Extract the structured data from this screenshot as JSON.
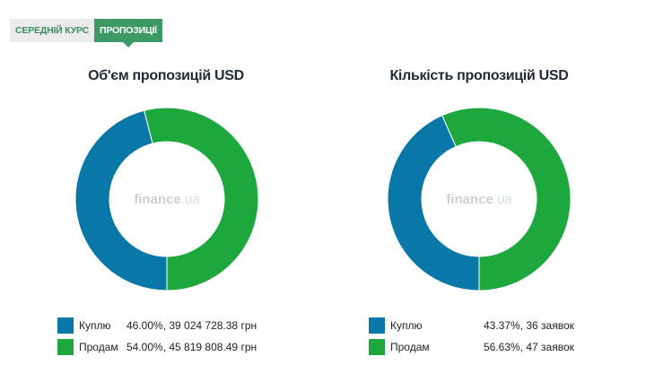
{
  "tabs": [
    {
      "label": "СЕРЕДНІЙ КУРС",
      "active": false
    },
    {
      "label": "ПРОПОЗИЦІЇ",
      "active": true
    }
  ],
  "colors": {
    "buy": "#0a77a9",
    "sell": "#1da83e",
    "tab_active": "#3d9966"
  },
  "watermark": {
    "main": "finance",
    "sub": ".ua"
  },
  "chart_data": [
    {
      "type": "pie",
      "title": "Об'єм пропозицій USD",
      "categories": [
        "Куплю",
        "Продам"
      ],
      "values": [
        46.0,
        54.0
      ],
      "value_labels": [
        "46.00%, 39 024 728.38 грн",
        "54.00%, 45 819 808.49 грн"
      ],
      "legend": "bottom"
    },
    {
      "type": "pie",
      "title": "Кількість пропозицій USD",
      "categories": [
        "Куплю",
        "Продам"
      ],
      "values": [
        43.37,
        56.63
      ],
      "value_labels": [
        "43.37%, 36 заявок",
        "56.63%, 47 заявок"
      ],
      "legend": "bottom"
    }
  ]
}
